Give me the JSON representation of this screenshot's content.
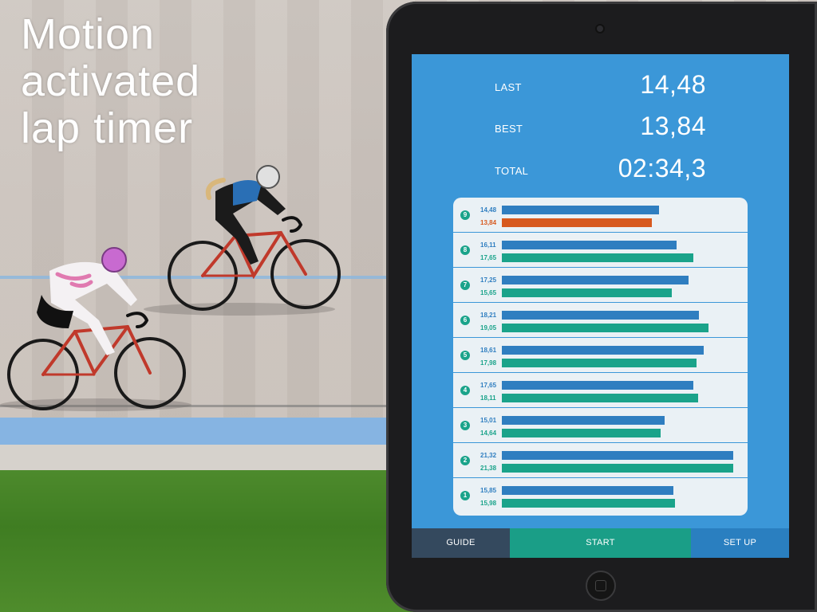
{
  "headline": [
    "Motion",
    "activated",
    "lap timer"
  ],
  "stats": [
    {
      "label": "LAST",
      "value": "14,48"
    },
    {
      "label": "BEST",
      "value": "13,84"
    },
    {
      "label": "TOTAL",
      "value": "02:34,3"
    }
  ],
  "laps": [
    {
      "num": "9",
      "top": {
        "value": "14,48",
        "time": 14.48,
        "kind": "blue"
      },
      "bottom": {
        "value": "13,84",
        "time": 13.84,
        "kind": "orange"
      }
    },
    {
      "num": "8",
      "top": {
        "value": "16,11",
        "time": 16.11,
        "kind": "blue"
      },
      "bottom": {
        "value": "17,65",
        "time": 17.65,
        "kind": "green"
      }
    },
    {
      "num": "7",
      "top": {
        "value": "17,25",
        "time": 17.25,
        "kind": "blue"
      },
      "bottom": {
        "value": "15,65",
        "time": 15.65,
        "kind": "green"
      }
    },
    {
      "num": "6",
      "top": {
        "value": "18,21",
        "time": 18.21,
        "kind": "blue"
      },
      "bottom": {
        "value": "19,05",
        "time": 19.05,
        "kind": "green"
      }
    },
    {
      "num": "5",
      "top": {
        "value": "18,61",
        "time": 18.61,
        "kind": "blue"
      },
      "bottom": {
        "value": "17,98",
        "time": 17.98,
        "kind": "green"
      }
    },
    {
      "num": "4",
      "top": {
        "value": "17,65",
        "time": 17.65,
        "kind": "blue"
      },
      "bottom": {
        "value": "18,11",
        "time": 18.11,
        "kind": "green"
      }
    },
    {
      "num": "3",
      "top": {
        "value": "15,01",
        "time": 15.01,
        "kind": "blue"
      },
      "bottom": {
        "value": "14,64",
        "time": 14.64,
        "kind": "green"
      }
    },
    {
      "num": "2",
      "top": {
        "value": "21,32",
        "time": 21.32,
        "kind": "blue"
      },
      "bottom": {
        "value": "21,38",
        "time": 21.38,
        "kind": "green"
      }
    },
    {
      "num": "1",
      "top": {
        "value": "15,85",
        "time": 15.85,
        "kind": "blue"
      },
      "bottom": {
        "value": "15,98",
        "time": 15.98,
        "kind": "green"
      }
    }
  ],
  "tabs": [
    {
      "label": "GUIDE",
      "color": "#34495e"
    },
    {
      "label": "START",
      "color": "#1a9e87"
    },
    {
      "label": "SET UP",
      "color": "#2a7fc0"
    }
  ],
  "colors": {
    "blue": "#2f7ec0",
    "green": "#1aa38a",
    "orange": "#d7591e",
    "screen": "#3b97d8"
  }
}
